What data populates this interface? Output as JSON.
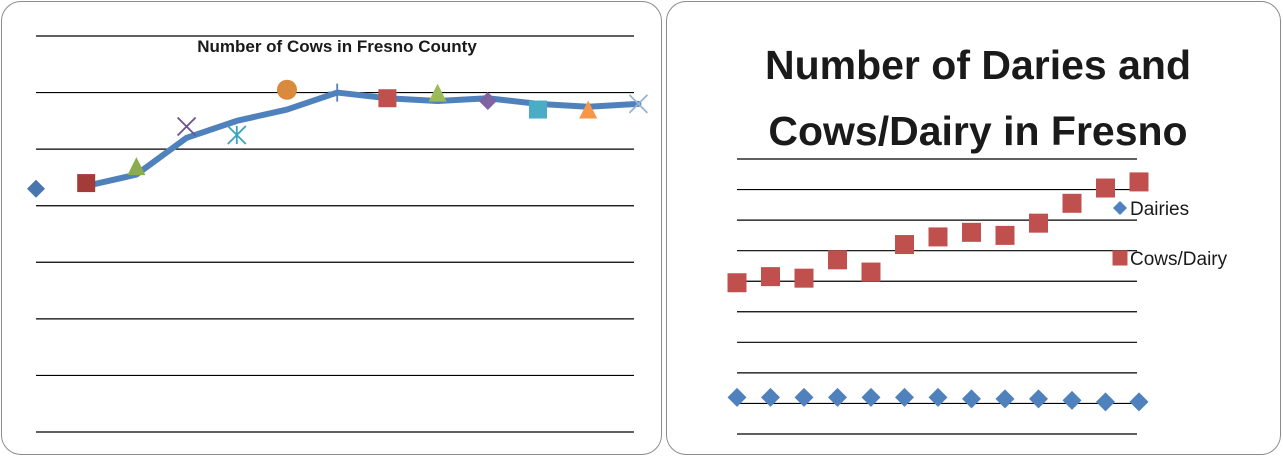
{
  "chart_data": [
    {
      "type": "line",
      "title": "Number of Cows in Fresno County",
      "xlabel": "",
      "ylabel": "",
      "grid": true,
      "legend": "none",
      "ylim": [
        0,
        7
      ],
      "line_series": {
        "color": "#4f81bd",
        "x": [
          1,
          2,
          3,
          4,
          5,
          6,
          7,
          8,
          9,
          10,
          11,
          12
        ],
        "values": [
          4.35,
          4.55,
          5.2,
          5.5,
          5.7,
          6.0,
          5.9,
          5.85,
          5.9,
          5.8,
          5.75,
          5.8
        ]
      },
      "marker_points": [
        {
          "x": 0,
          "y": 4.3,
          "marker": "diamond",
          "color": "#4a76b0"
        },
        {
          "x": 1,
          "y": 4.4,
          "marker": "square",
          "color": "#a33b38"
        },
        {
          "x": 2,
          "y": 4.7,
          "marker": "triangle",
          "color": "#8aac4a"
        },
        {
          "x": 3,
          "y": 5.4,
          "marker": "x",
          "color": "#6b5196"
        },
        {
          "x": 4,
          "y": 5.25,
          "marker": "star",
          "color": "#3aa3bd"
        },
        {
          "x": 5,
          "y": 6.05,
          "marker": "circle",
          "color": "#d98a3c"
        },
        {
          "x": 6,
          "y": 6.0,
          "marker": "plus",
          "color": "#4f81bd"
        },
        {
          "x": 7,
          "y": 5.9,
          "marker": "square",
          "color": "#c0504d"
        },
        {
          "x": 8,
          "y": 6.0,
          "marker": "triangle",
          "color": "#9bbb59"
        },
        {
          "x": 9,
          "y": 5.85,
          "marker": "diamond",
          "color": "#8064a2"
        },
        {
          "x": 10,
          "y": 5.7,
          "marker": "square",
          "color": "#4bacc6"
        },
        {
          "x": 11,
          "y": 5.7,
          "marker": "triangle",
          "color": "#f79646"
        },
        {
          "x": 12,
          "y": 5.8,
          "marker": "x",
          "color": "#95b3d7"
        }
      ]
    },
    {
      "type": "scatter",
      "title": "Number of Daries and Cows/Dairy in Fresno",
      "title_lines": [
        "Number of Daries and",
        "Cows/Dairy in Fresno"
      ],
      "xlabel": "",
      "ylabel": "",
      "grid": true,
      "legend": "right",
      "ylim": [
        0,
        9
      ],
      "x": [
        1,
        2,
        3,
        4,
        5,
        6,
        7,
        8,
        9,
        10,
        11,
        12,
        13
      ],
      "series": [
        {
          "name": "Dairies",
          "marker": "diamond",
          "color": "#4f81bd",
          "values": [
            1.2,
            1.2,
            1.2,
            1.2,
            1.2,
            1.2,
            1.2,
            1.15,
            1.15,
            1.15,
            1.1,
            1.05,
            1.05
          ]
        },
        {
          "name": "Cows/Dairy",
          "marker": "square",
          "color": "#c0504d",
          "values": [
            4.95,
            5.15,
            5.1,
            5.7,
            5.3,
            6.2,
            6.45,
            6.6,
            6.5,
            6.9,
            7.55,
            8.05,
            8.25
          ]
        }
      ]
    }
  ]
}
